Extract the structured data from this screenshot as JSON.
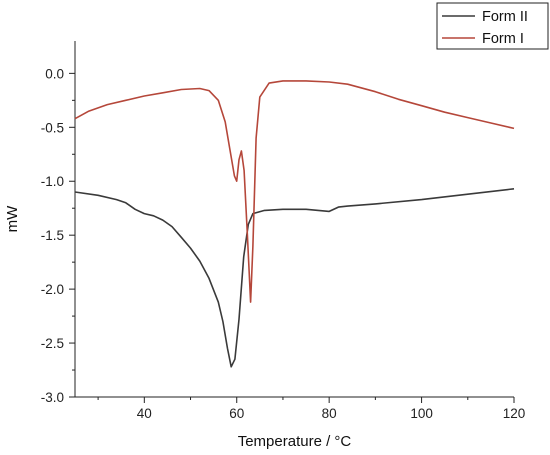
{
  "chart_data": {
    "type": "line",
    "xlabel": "Temperature / °C",
    "ylabel": "mW",
    "xlim": [
      25,
      120
    ],
    "ylim": [
      -3.0,
      0.3
    ],
    "x_ticks": [
      40,
      60,
      80,
      100,
      120
    ],
    "y_ticks": [
      0.0,
      -0.5,
      -1.0,
      -1.5,
      -2.0,
      -2.5,
      -3.0
    ],
    "grid": false,
    "legend_position": "top-right",
    "series": [
      {
        "name": "Form II",
        "color": "#3a3a3a",
        "points": [
          [
            25,
            -1.1
          ],
          [
            30,
            -1.13
          ],
          [
            34,
            -1.17
          ],
          [
            36,
            -1.2
          ],
          [
            38,
            -1.26
          ],
          [
            40,
            -1.3
          ],
          [
            42,
            -1.32
          ],
          [
            44,
            -1.36
          ],
          [
            46,
            -1.42
          ],
          [
            48,
            -1.52
          ],
          [
            50,
            -1.62
          ],
          [
            52,
            -1.74
          ],
          [
            54,
            -1.9
          ],
          [
            56,
            -2.12
          ],
          [
            57,
            -2.3
          ],
          [
            58,
            -2.55
          ],
          [
            58.8,
            -2.72
          ],
          [
            59.6,
            -2.65
          ],
          [
            60.5,
            -2.28
          ],
          [
            61.5,
            -1.7
          ],
          [
            62.5,
            -1.4
          ],
          [
            63.5,
            -1.3
          ],
          [
            66,
            -1.27
          ],
          [
            70,
            -1.26
          ],
          [
            75,
            -1.26
          ],
          [
            80,
            -1.28
          ],
          [
            82,
            -1.24
          ],
          [
            84,
            -1.23
          ],
          [
            90,
            -1.21
          ],
          [
            100,
            -1.17
          ],
          [
            110,
            -1.12
          ],
          [
            120,
            -1.07
          ]
        ]
      },
      {
        "name": "Form I",
        "color": "#b5473a",
        "points": [
          [
            25,
            -0.42
          ],
          [
            28,
            -0.35
          ],
          [
            32,
            -0.29
          ],
          [
            36,
            -0.25
          ],
          [
            40,
            -0.21
          ],
          [
            44,
            -0.18
          ],
          [
            48,
            -0.15
          ],
          [
            52,
            -0.14
          ],
          [
            54,
            -0.16
          ],
          [
            56,
            -0.25
          ],
          [
            57.5,
            -0.45
          ],
          [
            58.5,
            -0.7
          ],
          [
            59.5,
            -0.95
          ],
          [
            60,
            -1.0
          ],
          [
            60.5,
            -0.8
          ],
          [
            61,
            -0.72
          ],
          [
            61.6,
            -0.9
          ],
          [
            62.3,
            -1.5
          ],
          [
            63,
            -2.12
          ],
          [
            63.5,
            -1.6
          ],
          [
            64.2,
            -0.6
          ],
          [
            65,
            -0.22
          ],
          [
            67,
            -0.09
          ],
          [
            70,
            -0.07
          ],
          [
            75,
            -0.07
          ],
          [
            80,
            -0.08
          ],
          [
            84,
            -0.1
          ],
          [
            90,
            -0.17
          ],
          [
            95,
            -0.24
          ],
          [
            100,
            -0.3
          ],
          [
            105,
            -0.36
          ],
          [
            110,
            -0.41
          ],
          [
            115,
            -0.46
          ],
          [
            120,
            -0.51
          ]
        ]
      }
    ]
  }
}
